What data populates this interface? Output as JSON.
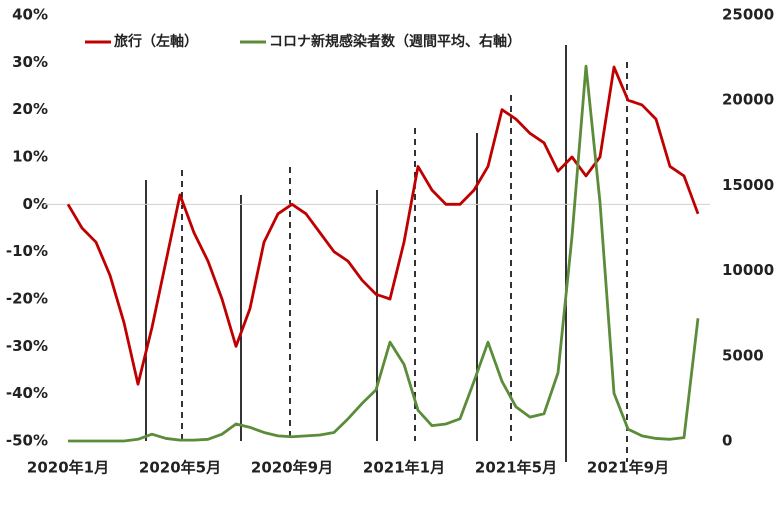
{
  "chart_data": {
    "type": "line",
    "categories": [
      "2020年1月",
      null,
      null,
      null,
      null,
      null,
      null,
      null,
      "2020年5月",
      null,
      null,
      null,
      null,
      null,
      null,
      null,
      "2020年9月",
      null,
      null,
      null,
      null,
      null,
      null,
      null,
      "2021年1月",
      null,
      null,
      null,
      null,
      null,
      null,
      null,
      "2021年5月",
      null,
      null,
      null,
      null,
      null,
      null,
      null,
      "2021年9月",
      null,
      null,
      null,
      null,
      null
    ],
    "series": [
      {
        "name": "旅行（左軸）",
        "color": "#c00000",
        "axis": "y",
        "values": [
          0,
          -5,
          -8,
          -15,
          -25,
          -38,
          -26,
          -12,
          2,
          -6,
          -12,
          -20,
          -30,
          -22,
          -8,
          -2,
          0,
          -2,
          -6,
          -10,
          -12,
          -16,
          -19,
          -20,
          -8,
          8,
          3,
          0,
          0,
          3,
          8,
          20,
          18,
          15,
          13,
          7,
          10,
          6,
          10,
          29,
          22,
          21,
          18,
          8,
          6,
          -2
        ]
      },
      {
        "name": "コロナ新規感染者数（週間平均、右軸）",
        "color": "#5b8c3a",
        "axis": "y2",
        "values": [
          0,
          0,
          0,
          0,
          0,
          100,
          400,
          150,
          50,
          50,
          100,
          400,
          1000,
          800,
          500,
          300,
          250,
          300,
          350,
          500,
          1300,
          2200,
          3000,
          5800,
          4500,
          1800,
          900,
          1000,
          1300,
          3500,
          5800,
          3500,
          2000,
          1400,
          1600,
          4000,
          12000,
          22000,
          14000,
          2800,
          700,
          300,
          150,
          100,
          200,
          7200
        ]
      }
    ],
    "ylim": [
      -50,
      40
    ],
    "yticks": [
      {
        "value": 40,
        "label": "40%"
      },
      {
        "value": 30,
        "label": "30%"
      },
      {
        "value": 20,
        "label": "20%"
      },
      {
        "value": 10,
        "label": "10%"
      },
      {
        "value": 0,
        "label": "0%"
      },
      {
        "value": -10,
        "label": "-10%"
      },
      {
        "value": -20,
        "label": "-20%"
      },
      {
        "value": -30,
        "label": "-30%"
      },
      {
        "value": -40,
        "label": "-40%"
      },
      {
        "value": -50,
        "label": "-50%"
      }
    ],
    "y2lim": [
      0,
      25000
    ],
    "y2ticks": [
      0,
      5000,
      10000,
      15000,
      20000,
      25000
    ],
    "zero_line": true
  }
}
